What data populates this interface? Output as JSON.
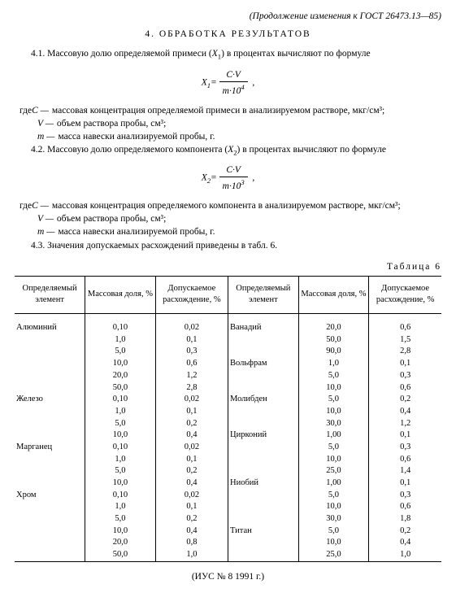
{
  "header_note": "(Продолжение изменения к ГОСТ 26473.13—85)",
  "section_title": "4. ОБРАБОТКА  РЕЗУЛЬТАТОВ",
  "p41_a": "4.1. Массовую долю определяемой примеси (",
  "p41_var": "X",
  "p41_sub": "1",
  "p41_b": ") в процентах вычисляют по формуле",
  "formula1_lhs": "X",
  "formula1_sub": "1",
  "formula1_eq": "=",
  "formula1_num": "C·V",
  "formula1_den_a": "m·10",
  "formula1_den_exp": "4",
  "where_label": "где ",
  "def_C": "C —",
  "def_C_txt_1": "массовая концентрация определяемой примеси в анализируемом растворе, мкг/см³;",
  "def_V": "V —",
  "def_V_txt": "объем раствора пробы, см³;",
  "def_m": "m —",
  "def_m_txt": "масса навески анализируемой пробы, г.",
  "p42_a": "4.2. Массовую долю определяемого компонента (",
  "p42_var": "X",
  "p42_sub": "2",
  "p42_b": ") в процентах вычисляют по формуле",
  "formula2_lhs": "X",
  "formula2_sub": "2",
  "formula2_eq": "=",
  "formula2_num": "C·V",
  "formula2_den_a": "m·10",
  "formula2_den_exp": "3",
  "def_C_txt_2": "массовая концентрация определяемого компонента в анализируемом растворе, мкг/см³;",
  "p43": "4.3. Значения допускаемых расхождений приведены в табл. 6.",
  "table_label": "Таблица 6",
  "col_elem": "Определяемый элемент",
  "col_mass": "Массовая доля, %",
  "col_disc": "Допускаемое расхождение, %",
  "left": [
    {
      "e": "Алюминий",
      "m": "0,10",
      "d": "0,02"
    },
    {
      "e": "",
      "m": "1,0",
      "d": "0,1"
    },
    {
      "e": "",
      "m": "5,0",
      "d": "0,3"
    },
    {
      "e": "",
      "m": "10,0",
      "d": "0,6"
    },
    {
      "e": "",
      "m": "20,0",
      "d": "1,2"
    },
    {
      "e": "",
      "m": "50,0",
      "d": "2,8"
    },
    {
      "e": "Железо",
      "m": "0,10",
      "d": "0,02"
    },
    {
      "e": "",
      "m": "1,0",
      "d": "0,1"
    },
    {
      "e": "",
      "m": "5,0",
      "d": "0,2"
    },
    {
      "e": "",
      "m": "10,0",
      "d": "0,4"
    },
    {
      "e": "Марганец",
      "m": "0,10",
      "d": "0,02"
    },
    {
      "e": "",
      "m": "1,0",
      "d": "0,1"
    },
    {
      "e": "",
      "m": "5,0",
      "d": "0,2"
    },
    {
      "e": "",
      "m": "10,0",
      "d": "0,4"
    },
    {
      "e": "Хром",
      "m": "0,10",
      "d": "0,02"
    },
    {
      "e": "",
      "m": "1,0",
      "d": "0,1"
    },
    {
      "e": "",
      "m": "5,0",
      "d": "0,2"
    },
    {
      "e": "",
      "m": "10,0",
      "d": "0,4"
    },
    {
      "e": "",
      "m": "20,0",
      "d": "0,8"
    },
    {
      "e": "",
      "m": "50,0",
      "d": "1,0"
    }
  ],
  "right": [
    {
      "e": "Ванадий",
      "m": "20,0",
      "d": "0,6"
    },
    {
      "e": "",
      "m": "50,0",
      "d": "1,5"
    },
    {
      "e": "",
      "m": "90,0",
      "d": "2,8"
    },
    {
      "e": "Вольфрам",
      "m": "1,0",
      "d": "0,1"
    },
    {
      "e": "",
      "m": "5,0",
      "d": "0,3"
    },
    {
      "e": "",
      "m": "10,0",
      "d": "0,6"
    },
    {
      "e": "Молибден",
      "m": "5,0",
      "d": "0,2"
    },
    {
      "e": "",
      "m": "10,0",
      "d": "0,4"
    },
    {
      "e": "",
      "m": "30,0",
      "d": "1,2"
    },
    {
      "e": "Цирконий",
      "m": "1,00",
      "d": "0,1"
    },
    {
      "e": "",
      "m": "5,0",
      "d": "0,3"
    },
    {
      "e": "",
      "m": "10,0",
      "d": "0,6"
    },
    {
      "e": "",
      "m": "25,0",
      "d": "1,4"
    },
    {
      "e": "Ниобий",
      "m": "1,00",
      "d": "0,1"
    },
    {
      "e": "",
      "m": "5,0",
      "d": "0,3"
    },
    {
      "e": "",
      "m": "10,0",
      "d": "0,6"
    },
    {
      "e": "",
      "m": "30,0",
      "d": "1,8"
    },
    {
      "e": "Титан",
      "m": "5,0",
      "d": "0,2"
    },
    {
      "e": "",
      "m": "10,0",
      "d": "0,4"
    },
    {
      "e": "",
      "m": "25,0",
      "d": "1,0"
    }
  ],
  "footer": "(ИУС № 8 1991 г.)"
}
